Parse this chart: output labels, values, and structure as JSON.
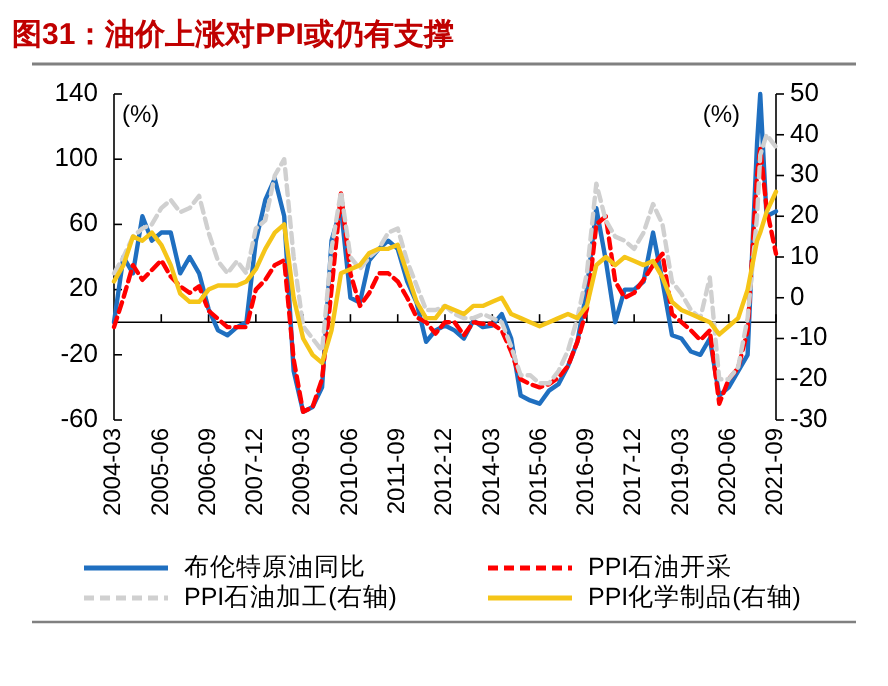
{
  "chart_data": {
    "type": "line",
    "title": "图31：油价上涨对PPI或仍有支撑",
    "ylabel": "(%)",
    "y2label": "(%)",
    "x": [
      "2004-03",
      "2004-06",
      "2004-09",
      "2004-12",
      "2005-03",
      "2005-06",
      "2005-09",
      "2005-12",
      "2006-03",
      "2006-06",
      "2006-09",
      "2006-12",
      "2007-03",
      "2007-06",
      "2007-09",
      "2007-12",
      "2008-03",
      "2008-06",
      "2008-09",
      "2008-12",
      "2009-03",
      "2009-06",
      "2009-09",
      "2009-12",
      "2010-03",
      "2010-06",
      "2010-09",
      "2010-12",
      "2011-03",
      "2011-06",
      "2011-09",
      "2011-12",
      "2012-03",
      "2012-06",
      "2012-09",
      "2012-12",
      "2013-03",
      "2013-06",
      "2013-09",
      "2013-12",
      "2014-03",
      "2014-06",
      "2014-09",
      "2014-12",
      "2015-03",
      "2015-06",
      "2015-09",
      "2015-12",
      "2016-03",
      "2016-06",
      "2016-09",
      "2016-12",
      "2017-03",
      "2017-06",
      "2017-09",
      "2017-12",
      "2018-03",
      "2018-06",
      "2018-09",
      "2018-12",
      "2019-03",
      "2019-06",
      "2019-09",
      "2019-12",
      "2020-03",
      "2020-06",
      "2020-09",
      "2020-12",
      "2021-03",
      "2021-04",
      "2021-06",
      "2021-09"
    ],
    "series": [
      {
        "name": "布伦特原油同比",
        "color": "#1f6fc0",
        "line_style": "solid",
        "values": [
          0,
          40,
          30,
          65,
          50,
          55,
          55,
          30,
          40,
          30,
          8,
          -5,
          -8,
          -3,
          0,
          50,
          75,
          88,
          65,
          -30,
          -55,
          -52,
          -40,
          50,
          70,
          15,
          12,
          38,
          45,
          50,
          45,
          25,
          12,
          -12,
          -5,
          -2,
          -5,
          -10,
          1,
          -3,
          -2,
          5,
          -10,
          -45,
          -48,
          -50,
          -42,
          -38,
          -27,
          -12,
          20,
          70,
          38,
          0,
          20,
          20,
          25,
          55,
          25,
          -8,
          -10,
          -18,
          -20,
          -10,
          -45,
          -40,
          -30,
          -20,
          110,
          140,
          65,
          68
        ]
      },
      {
        "name": "PPI石油开采",
        "color": "#ff0000",
        "line_style": "dashed",
        "values": [
          -3,
          15,
          35,
          26,
          32,
          38,
          28,
          22,
          18,
          22,
          7,
          2,
          -3,
          -3,
          -3,
          20,
          26,
          35,
          38,
          -23,
          -55,
          -52,
          -35,
          20,
          79,
          30,
          10,
          18,
          30,
          30,
          25,
          15,
          3,
          0,
          -7,
          0,
          0,
          -8,
          0,
          -1,
          -1,
          -5,
          -18,
          -35,
          -38,
          -40,
          -38,
          -34,
          -27,
          -12,
          8,
          60,
          65,
          25,
          15,
          18,
          26,
          35,
          42,
          5,
          0,
          -5,
          -11,
          -5,
          -50,
          -35,
          -28,
          -5,
          90,
          107,
          70,
          42
        ]
      },
      {
        "name": "PPI石油加工(右轴)",
        "color": "#d0d0d0",
        "line_style": "dashed",
        "axis": "y2",
        "values": [
          6,
          10,
          15,
          17,
          18,
          22,
          24,
          21,
          22,
          25,
          16,
          9,
          6,
          9,
          6,
          17,
          19,
          30,
          34,
          10,
          -7,
          -10,
          -13,
          12,
          26,
          10,
          7,
          10,
          12,
          16,
          17,
          9,
          3,
          -3,
          -3,
          -2,
          -4,
          -5,
          -5,
          -4,
          -5,
          -6,
          -12,
          -19,
          -19,
          -21,
          -21,
          -18,
          -13,
          -5,
          6,
          28,
          19,
          15,
          14,
          12,
          16,
          23,
          18,
          4,
          1,
          -3,
          -5,
          5,
          -20,
          -20,
          -17,
          -5,
          20,
          35,
          40,
          37
        ]
      },
      {
        "name": "PPI化学制品(右轴)",
        "color": "#f5c518",
        "line_style": "solid",
        "axis": "y2",
        "values": [
          4,
          8,
          15,
          14,
          16,
          13,
          8,
          1,
          -1,
          -1,
          2,
          3,
          3,
          3,
          4,
          7,
          12,
          16,
          18,
          0,
          -10,
          -14,
          -16,
          -8,
          6,
          7,
          8,
          11,
          12,
          12,
          13,
          6,
          -1,
          -5,
          -5,
          -2,
          -3,
          -4,
          -2,
          -2,
          -1,
          0,
          -4,
          -5,
          -6,
          -7,
          -6,
          -5,
          -4,
          -5,
          -2,
          8,
          10,
          8,
          10,
          9,
          8,
          9,
          5,
          -1,
          -3,
          -4,
          -5,
          -6,
          -9,
          -7,
          -5,
          2,
          14,
          16,
          21,
          26
        ]
      }
    ],
    "xlim": [
      "2004-03",
      "2021-09"
    ],
    "xticks": [
      "2004-03",
      "2005-06",
      "2006-09",
      "2007-12",
      "2009-03",
      "2010-06",
      "2011-09",
      "2012-12",
      "2014-03",
      "2015-06",
      "2016-09",
      "2017-12",
      "2019-03",
      "2020-06",
      "2021-09"
    ],
    "ylim": [
      -60,
      140
    ],
    "yticks": [
      -60,
      -20,
      20,
      60,
      100,
      140
    ],
    "y2lim": [
      -30,
      50
    ],
    "y2ticks": [
      -30,
      -20,
      -10,
      0,
      10,
      20,
      30,
      40,
      50
    ],
    "grid": false,
    "legend": "bottom"
  }
}
